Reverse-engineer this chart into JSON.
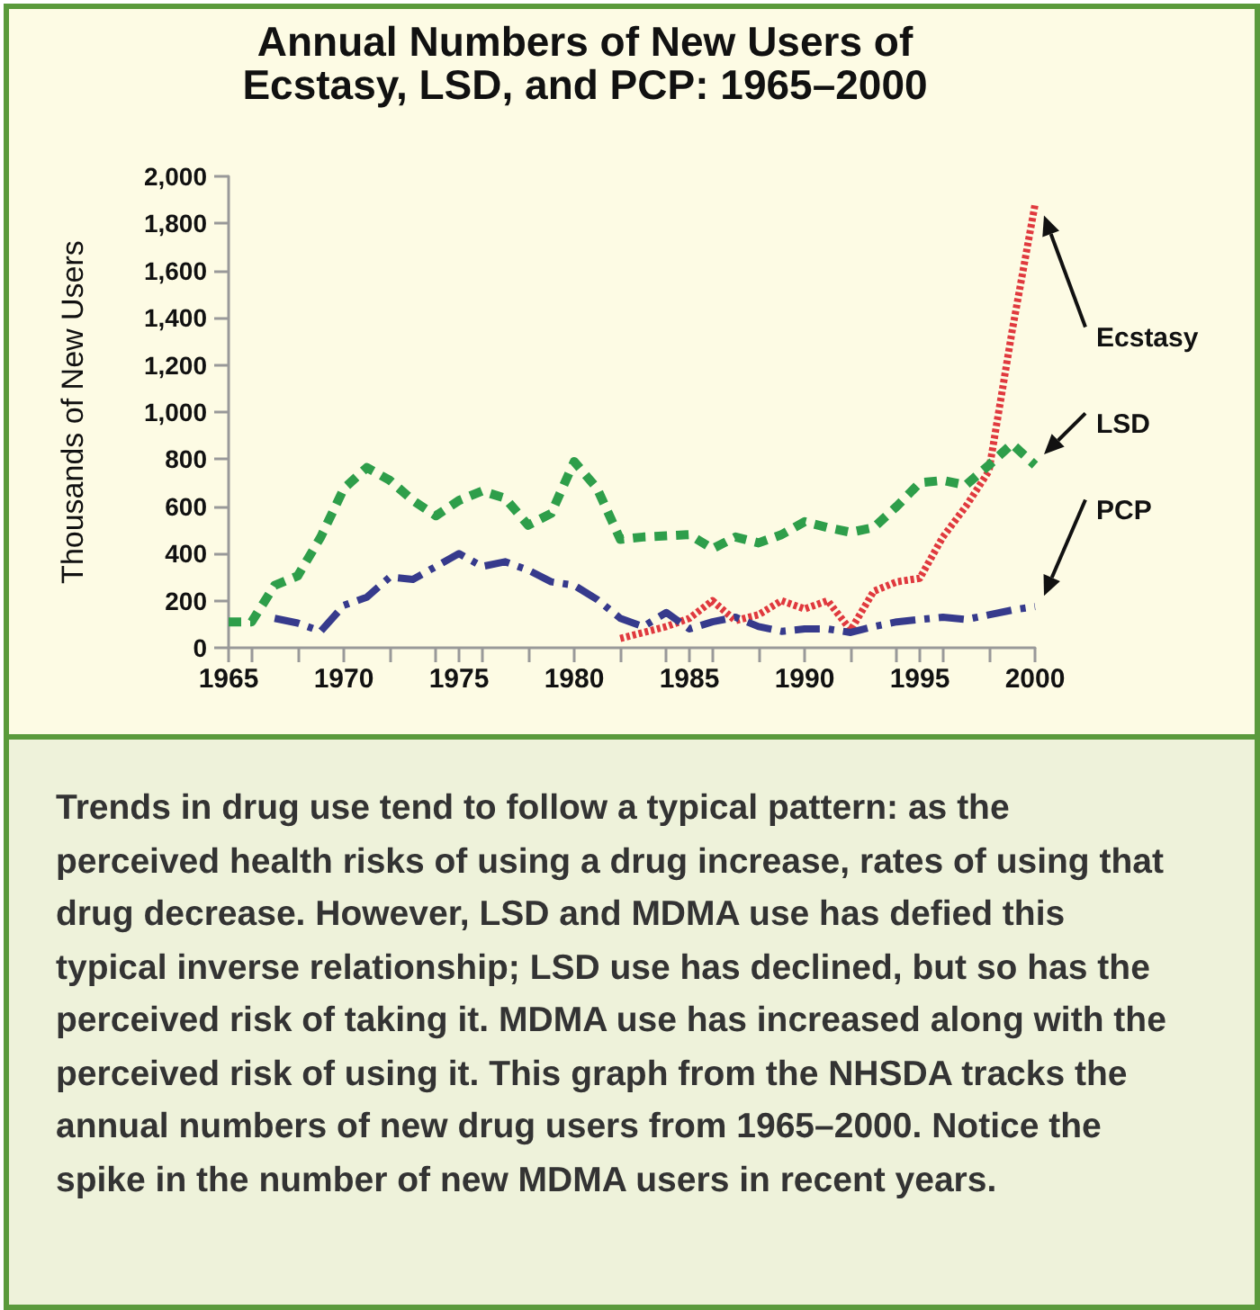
{
  "chart_data": {
    "type": "line",
    "title": "Annual Numbers of New Users of Ecstasy, LSD, and PCP: 1965–2000",
    "ylabel": "Thousands of New Users",
    "annotations": [
      "Trends in drug use tend to follow a typical pattern: as the perceived health risks of using a drug increase, rates of using that drug decrease. However, LSD and MDMA use has defied this typical inverse relationship; LSD use has declined, but so has the perceived risk of taking it. MDMA use has increased along with the perceived risk of using it. This graph from the NHSDA tracks the annual numbers of new drug users from 1965–2000. Notice the spike in the number of new MDMA users in recent years."
    ],
    "xlim": [
      1965,
      2000
    ],
    "xticks": [
      1965,
      1970,
      1975,
      1980,
      1985,
      1990,
      1995,
      2000
    ],
    "ylim": [
      0,
      2000
    ],
    "yticks": [
      0,
      200,
      400,
      600,
      800,
      {
        "value": 1000,
        "label": "1,000"
      },
      {
        "value": 1200,
        "label": "1,200"
      },
      {
        "value": 1400,
        "label": "1,400"
      },
      {
        "value": 1600,
        "label": "1,600"
      },
      {
        "value": 1800,
        "label": "1,800"
      },
      {
        "value": 2000,
        "label": "2,000"
      }
    ],
    "grid": false,
    "legend": false,
    "marker": "none",
    "series": [
      {
        "name": "Ecstasy",
        "color": "#e0393e",
        "line_style": "dotted",
        "x": [
          1982,
          1983,
          1984,
          1985,
          1986,
          1987,
          1988,
          1989,
          1990,
          1991,
          1992,
          1993,
          1994,
          1995,
          1996,
          1997,
          1998,
          1999,
          2000
        ],
        "values": [
          40,
          65,
          90,
          125,
          200,
          115,
          140,
          200,
          165,
          200,
          75,
          240,
          280,
          295,
          470,
          600,
          750,
          1340,
          1880
        ]
      },
      {
        "name": "LSD",
        "color": "#2e9e4a",
        "line_style": "dashed",
        "x": [
          1965,
          1966,
          1967,
          1968,
          1969,
          1970,
          1971,
          1972,
          1973,
          1974,
          1975,
          1976,
          1977,
          1978,
          1979,
          1980,
          1981,
          1982,
          1983,
          1984,
          1985,
          1986,
          1987,
          1988,
          1989,
          1990,
          1991,
          1992,
          1993,
          1994,
          1995,
          1996,
          1997,
          1998,
          1999,
          2000
        ],
        "values": [
          110,
          110,
          265,
          305,
          470,
          675,
          765,
          710,
          625,
          560,
          625,
          665,
          635,
          520,
          570,
          790,
          675,
          460,
          470,
          475,
          480,
          420,
          470,
          445,
          480,
          535,
          510,
          490,
          510,
          600,
          700,
          710,
          690,
          775,
          865,
          775
        ]
      },
      {
        "name": "PCP",
        "color": "#363a8c",
        "line_style": "dashdot",
        "x": [
          1967,
          1968,
          1969,
          1970,
          1971,
          1972,
          1973,
          1974,
          1975,
          1976,
          1977,
          1978,
          1979,
          1980,
          1981,
          1982,
          1983,
          1984,
          1985,
          1986,
          1987,
          1988,
          1989,
          1990,
          1991,
          1992,
          1993,
          1994,
          1995,
          1996,
          1997,
          1998,
          1999,
          2000
        ],
        "values": [
          125,
          105,
          70,
          180,
          215,
          300,
          290,
          345,
          400,
          345,
          365,
          330,
          280,
          265,
          205,
          125,
          90,
          150,
          80,
          110,
          130,
          90,
          70,
          80,
          80,
          65,
          90,
          110,
          120,
          130,
          120,
          140,
          160,
          175
        ]
      }
    ]
  }
}
